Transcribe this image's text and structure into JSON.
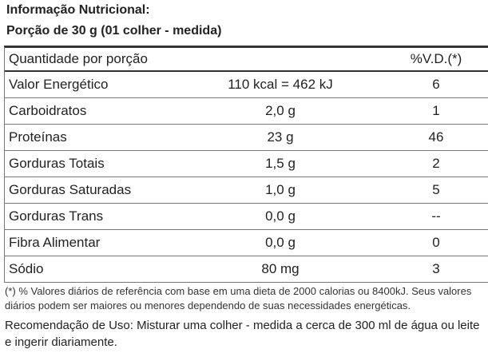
{
  "header": {
    "title": "Informação Nutricional:",
    "portion": "Porção de 30 g (01 colher - medida)"
  },
  "table": {
    "columns": [
      "Quantidade por porção",
      "%V.D.(*)"
    ],
    "rows": [
      [
        "Valor Energético",
        "110 kcal = 462 kJ",
        "6"
      ],
      [
        "Carboidratos",
        "2,0 g",
        "1"
      ],
      [
        "Proteínas",
        "23 g",
        "46"
      ],
      [
        "Gorduras Totais",
        "1,5 g",
        "2"
      ],
      [
        "Gorduras Saturadas",
        "1,0 g",
        "5"
      ],
      [
        "Gorduras Trans",
        "0,0 g",
        "--"
      ],
      [
        "Fibra Alimentar",
        "0,0 g",
        "0"
      ],
      [
        "Sódio",
        "80 mg",
        "3"
      ]
    ]
  },
  "footnote": "(*) % Valores diários de referência com base em uma dieta de 2000 calorias ou 8400kJ. Seus valores diários podem ser maiores ou menores dependendo de suas necessidades energéticas.",
  "recommendation": "Recomendação de Uso: Misturar uma colher - medida a cerca de 300 ml de água ou leite e ingerir diariamente."
}
